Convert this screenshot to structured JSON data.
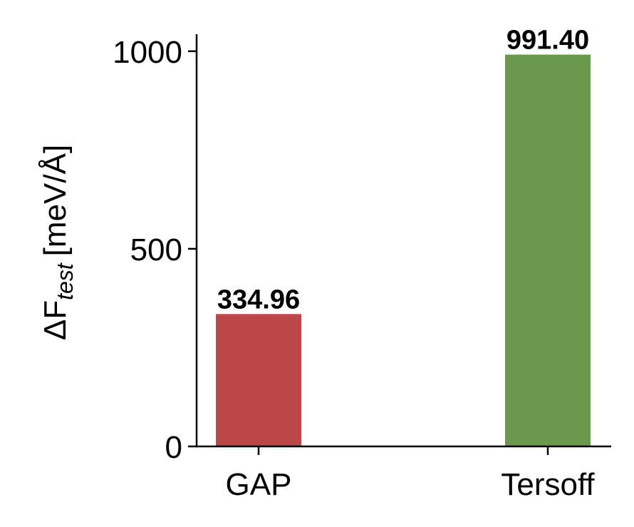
{
  "chart_data": {
    "type": "bar",
    "y_label": {
      "main": "ΔF",
      "subscript": "test",
      "unit": "[meV/Å]"
    },
    "categories": [
      "GAP",
      "Tersoff"
    ],
    "values": [
      334.96,
      991.4
    ],
    "value_labels": [
      "334.96",
      "991.40"
    ],
    "colors": [
      "#bc4749",
      "#6a994e"
    ],
    "ylim": [
      0,
      1043
    ],
    "yticks": [
      0,
      500,
      1000
    ],
    "grid": false
  }
}
